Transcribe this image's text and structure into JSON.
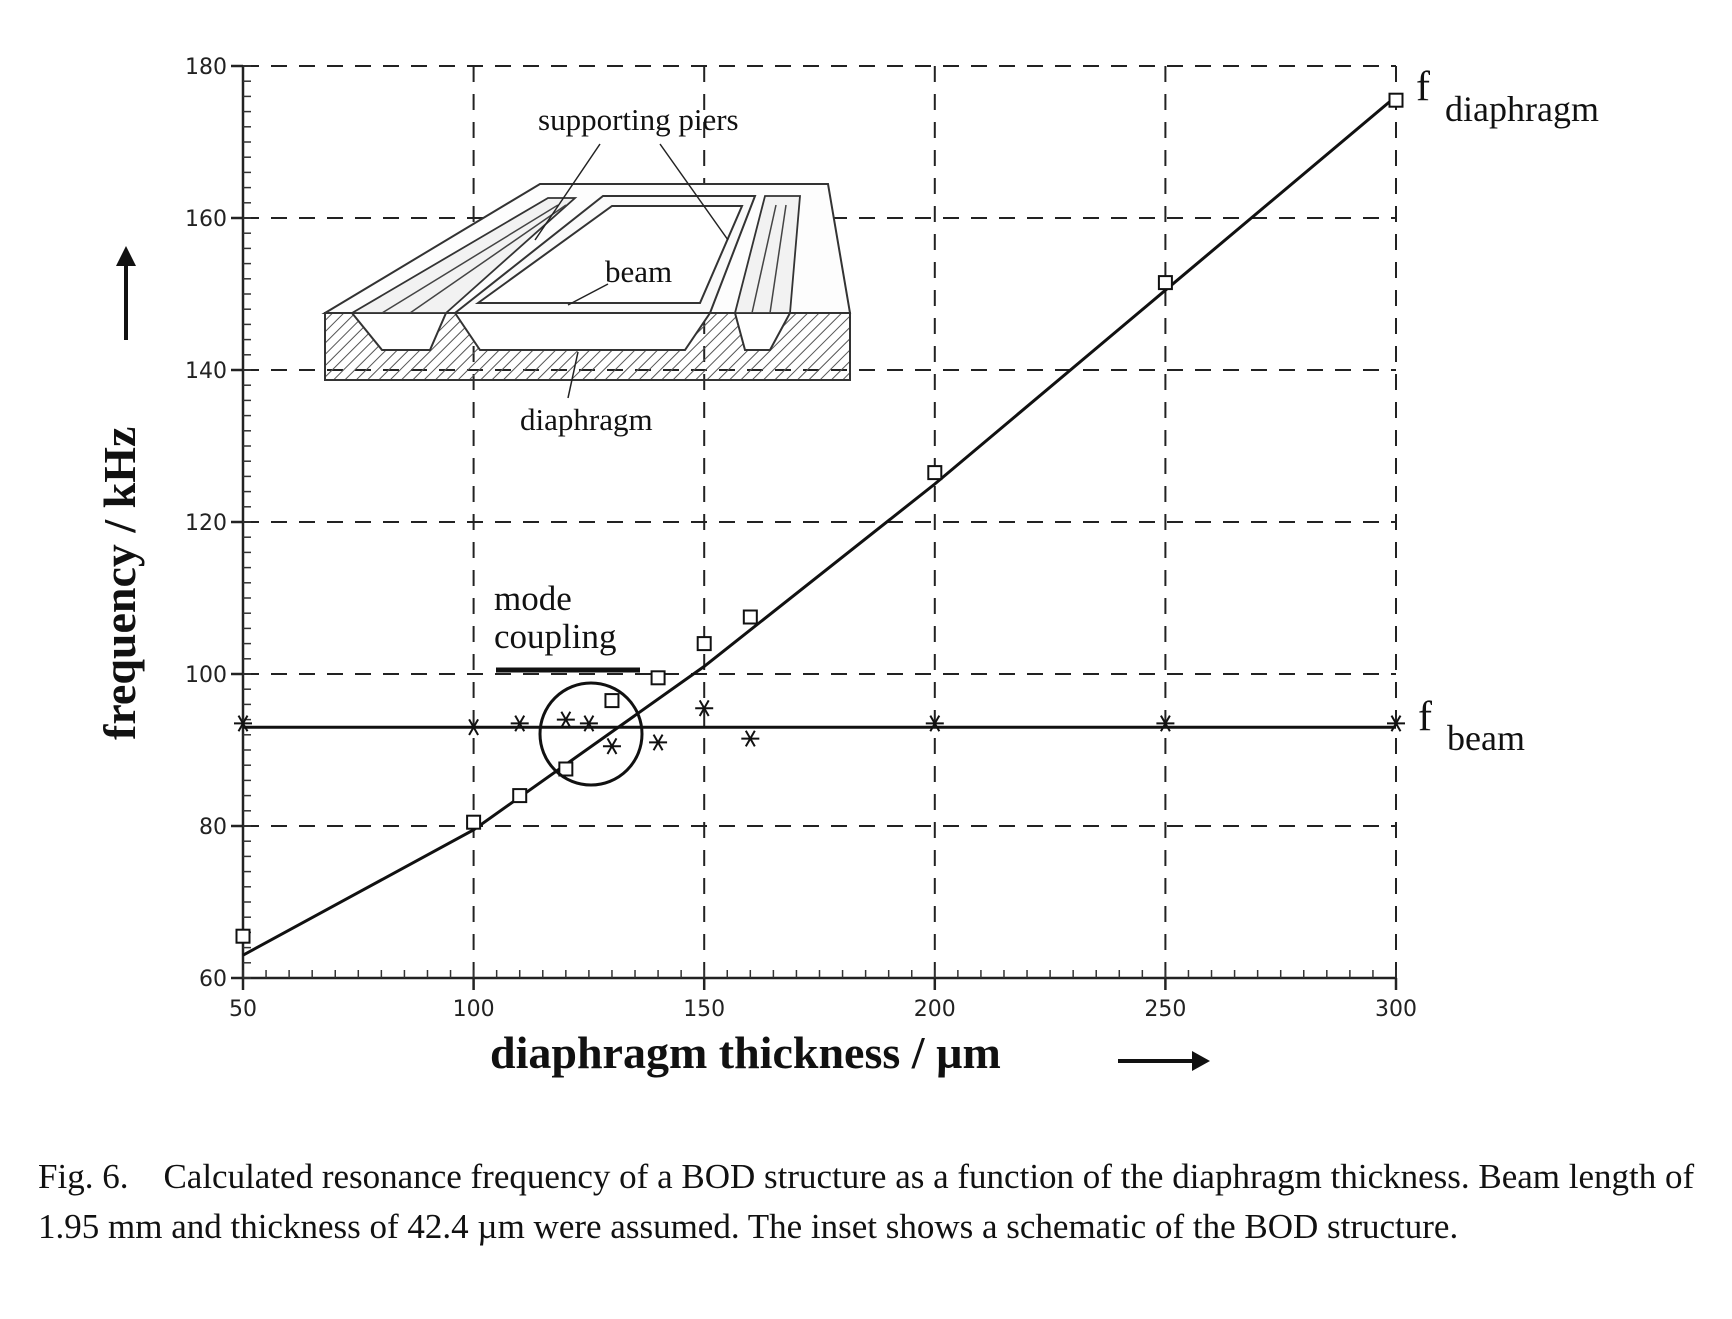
{
  "chart_data": {
    "type": "scatter",
    "xlabel": "diaphragm thickness / µm",
    "ylabel": "frequency / kHz",
    "xlim": [
      50,
      300
    ],
    "ylim": [
      60,
      180
    ],
    "xticks": [
      50,
      100,
      150,
      200,
      250,
      300
    ],
    "yticks": [
      60,
      80,
      100,
      120,
      140,
      160,
      180
    ],
    "grid": true,
    "series": [
      {
        "name": "f diaphragm",
        "marker": "square",
        "line": [
          [
            50,
            63
          ],
          [
            100,
            79.5
          ],
          [
            150,
            101
          ],
          [
            200,
            125
          ],
          [
            250,
            150.5
          ],
          [
            300,
            176
          ]
        ],
        "points": [
          [
            50,
            65.5
          ],
          [
            100,
            80.5
          ],
          [
            110,
            84
          ],
          [
            120,
            87.5
          ],
          [
            130,
            96.5
          ],
          [
            140,
            99.5
          ],
          [
            150,
            104
          ],
          [
            160,
            107.5
          ],
          [
            200,
            126.5
          ],
          [
            250,
            151.5
          ],
          [
            300,
            175.5
          ]
        ]
      },
      {
        "name": "f beam",
        "marker": "star",
        "line": [
          [
            50,
            93
          ],
          [
            300,
            93
          ]
        ],
        "points": [
          [
            50,
            93.5
          ],
          [
            100,
            93
          ],
          [
            110,
            93.5
          ],
          [
            120,
            94
          ],
          [
            125,
            93.5
          ],
          [
            130,
            90.5
          ],
          [
            140,
            91
          ],
          [
            150,
            95.5
          ],
          [
            160,
            91.5
          ],
          [
            200,
            93.5
          ],
          [
            250,
            93.5
          ],
          [
            300,
            93.5
          ]
        ]
      }
    ],
    "series_labels": {
      "diaphragm_prefix": "f",
      "diaphragm_sub": "diaphragm",
      "beam_prefix": "f",
      "beam_sub": "beam"
    },
    "annotations": {
      "mode_line1": "mode",
      "mode_line2": "coupling",
      "inset_piers": "supporting piers",
      "inset_beam": "beam",
      "inset_diaphragm": "diaphragm"
    }
  },
  "caption": "Fig. 6. Calculated resonance frequency of a BOD structure as a function of the diaphragm thickness. Beam length of 1.95 mm and thickness of 42.4 µm were assumed.  The inset shows a schematic of the BOD structure."
}
